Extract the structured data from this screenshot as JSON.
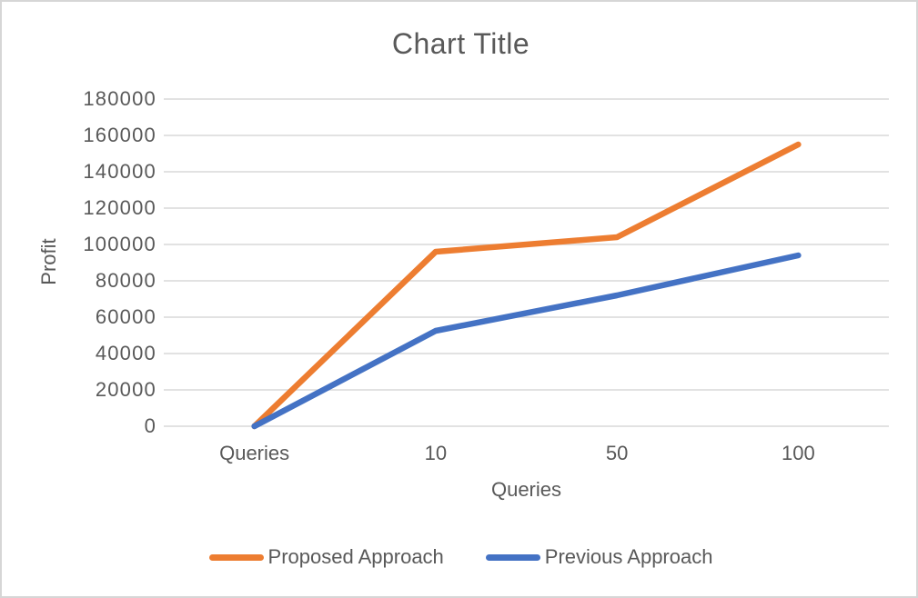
{
  "colors": {
    "text": "#595959",
    "gridline": "#D9D9D9",
    "border": "#D6D6D6",
    "background": "#FFFFFF"
  },
  "chart_data": {
    "type": "line",
    "title": "Chart Title",
    "xlabel": "Queries",
    "ylabel": "Profit",
    "categories": [
      "Queries",
      "10",
      "50",
      "100"
    ],
    "series": [
      {
        "name": "Proposed Approach",
        "color": "#ED7D31",
        "values": [
          0,
          96000,
          104000,
          155000
        ]
      },
      {
        "name": "Previous Approach",
        "color": "#4472C4",
        "values": [
          0,
          52500,
          72000,
          94000
        ]
      }
    ],
    "ylim": [
      0,
      180000
    ],
    "ytick_step": 20000,
    "ytick_labels": [
      "0",
      "20000",
      "40000",
      "60000",
      "80000",
      "100000",
      "120000",
      "140000",
      "160000",
      "180000"
    ],
    "grid": true,
    "legend_position": "bottom",
    "line_width": 6.5
  }
}
